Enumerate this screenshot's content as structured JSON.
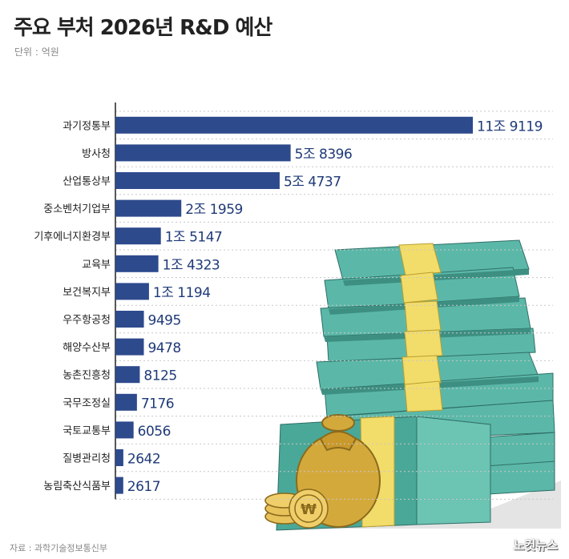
{
  "header": {
    "title": "주요 부처 2026년 R&D 예산",
    "unit": "단위 : 억원"
  },
  "footer": {
    "source": "자료 : 과학기술정보통신부",
    "brand": "노컷뉴스"
  },
  "colors": {
    "bar": "#2d4a8c",
    "value_text": "#1f3a78",
    "label_text": "#222222",
    "grid": "#c8c8c8",
    "axis": "#222222",
    "money": "#5bb8a8",
    "money_dark": "#3d8f82",
    "band": "#f2dc6a",
    "gold": "#d4a93c"
  },
  "chart_data": {
    "type": "bar",
    "orientation": "horizontal",
    "title": "주요 부처 2026년 R&D 예산",
    "unit": "억원",
    "categories": [
      "과기정통부",
      "방사청",
      "산업통상부",
      "중소벤처기업부",
      "기후에너지환경부",
      "교육부",
      "보건복지부",
      "우주항공청",
      "해양수산부",
      "농촌진흥청",
      "국무조정실",
      "국토교통부",
      "질병관리청",
      "농림축산식품부"
    ],
    "values": [
      119119,
      58396,
      54737,
      21959,
      15147,
      14323,
      11194,
      9495,
      9478,
      8125,
      7176,
      6056,
      2642,
      2617
    ],
    "value_labels": [
      "11조 9119",
      "5조 8396",
      "5조 4737",
      "2조 1959",
      "1조 5147",
      "1조 4323",
      "1조 1194",
      "9495",
      "9478",
      "8125",
      "7176",
      "6056",
      "2642",
      "2617"
    ],
    "xlim": [
      0,
      140000
    ],
    "grid": true
  }
}
